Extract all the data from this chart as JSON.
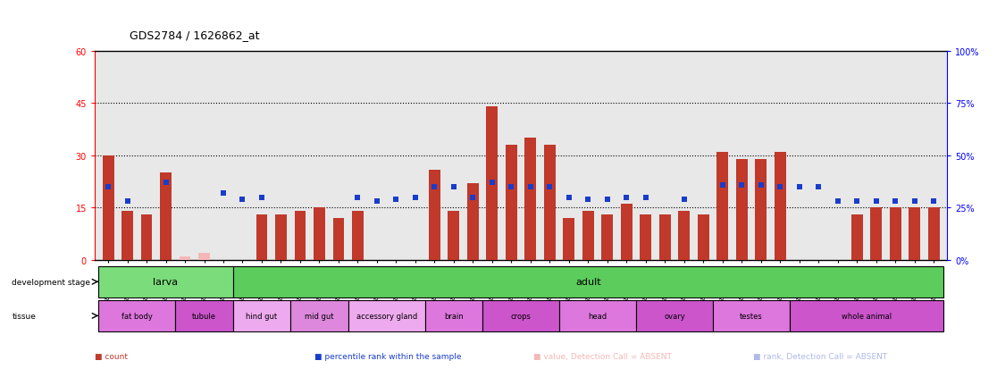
{
  "title": "GDS2784 / 1626862_at",
  "samples": [
    "GSM188092",
    "GSM188093",
    "GSM188094",
    "GSM188095",
    "GSM188100",
    "GSM188101",
    "GSM188102",
    "GSM188103",
    "GSM188072",
    "GSM188073",
    "GSM188074",
    "GSM188075",
    "GSM188076",
    "GSM188077",
    "GSM188078",
    "GSM188079",
    "GSM188080",
    "GSM188081",
    "GSM188082",
    "GSM188083",
    "GSM188084",
    "GSM188085",
    "GSM188086",
    "GSM188087",
    "GSM188088",
    "GSM188089",
    "GSM188090",
    "GSM188091",
    "GSM188096",
    "GSM188097",
    "GSM188098",
    "GSM188099",
    "GSM188104",
    "GSM188105",
    "GSM188106",
    "GSM188107",
    "GSM188108",
    "GSM188109",
    "GSM188110",
    "GSM188111",
    "GSM188112",
    "GSM188113",
    "GSM188114",
    "GSM188115"
  ],
  "count_values": [
    30,
    14,
    13,
    25,
    1,
    2,
    null,
    null,
    13,
    13,
    14,
    15,
    12,
    14,
    null,
    null,
    null,
    26,
    14,
    22,
    44,
    33,
    35,
    33,
    12,
    14,
    13,
    16,
    13,
    13,
    14,
    13,
    31,
    29,
    29,
    31,
    null,
    null,
    null,
    13,
    15,
    15,
    15,
    15
  ],
  "count_absent": [
    false,
    false,
    false,
    false,
    true,
    true,
    true,
    false,
    false,
    false,
    false,
    false,
    false,
    false,
    true,
    true,
    true,
    false,
    false,
    false,
    false,
    false,
    false,
    false,
    false,
    false,
    false,
    false,
    false,
    false,
    false,
    false,
    false,
    false,
    false,
    false,
    true,
    false,
    true,
    false,
    false,
    false,
    false,
    false
  ],
  "rank_values": [
    35,
    28,
    null,
    37,
    null,
    null,
    32,
    29,
    30,
    null,
    null,
    null,
    null,
    30,
    28,
    29,
    30,
    35,
    35,
    30,
    37,
    35,
    35,
    35,
    30,
    29,
    29,
    30,
    30,
    null,
    29,
    null,
    36,
    36,
    36,
    35,
    35,
    35,
    28,
    28,
    28,
    28,
    28,
    28
  ],
  "rank_absent": [
    false,
    false,
    false,
    false,
    false,
    false,
    false,
    false,
    false,
    true,
    true,
    false,
    false,
    false,
    false,
    false,
    false,
    false,
    false,
    false,
    false,
    false,
    false,
    false,
    false,
    false,
    false,
    false,
    false,
    true,
    false,
    false,
    false,
    false,
    false,
    false,
    false,
    false,
    false,
    false,
    false,
    false,
    false,
    false
  ],
  "ylim_left": [
    0,
    60
  ],
  "ylim_right": [
    0,
    100
  ],
  "yticks_left": [
    0,
    15,
    30,
    45,
    60
  ],
  "yticks_right": [
    0,
    25,
    50,
    75,
    100
  ],
  "ytick_labels_left": [
    "0",
    "15",
    "30",
    "45",
    "60"
  ],
  "ytick_labels_right": [
    "0%",
    "25%",
    "50%",
    "75%",
    "100%"
  ],
  "hlines": [
    15,
    30,
    45
  ],
  "bar_color_present": "#c0392b",
  "bar_color_absent": "#f5b8b8",
  "dot_color_present": "#1a3ccc",
  "dot_color_absent": "#b0b8e8",
  "development_stages": [
    {
      "label": "larva",
      "start": 0,
      "end": 7,
      "color": "#7bdc7b"
    },
    {
      "label": "adult",
      "start": 7,
      "end": 44,
      "color": "#5ccc5c"
    }
  ],
  "tissues": [
    {
      "label": "fat body",
      "start": 0,
      "end": 4,
      "color": "#dd77dd"
    },
    {
      "label": "tubule",
      "start": 4,
      "end": 7,
      "color": "#cc55cc"
    },
    {
      "label": "hind gut",
      "start": 7,
      "end": 10,
      "color": "#eeaaee"
    },
    {
      "label": "mid gut",
      "start": 10,
      "end": 13,
      "color": "#dd88dd"
    },
    {
      "label": "accessory gland",
      "start": 13,
      "end": 17,
      "color": "#eeaaee"
    },
    {
      "label": "brain",
      "start": 17,
      "end": 20,
      "color": "#dd77dd"
    },
    {
      "label": "crops",
      "start": 20,
      "end": 24,
      "color": "#cc55cc"
    },
    {
      "label": "head",
      "start": 24,
      "end": 28,
      "color": "#dd77dd"
    },
    {
      "label": "ovary",
      "start": 28,
      "end": 32,
      "color": "#cc55cc"
    },
    {
      "label": "testes",
      "start": 32,
      "end": 36,
      "color": "#dd77dd"
    },
    {
      "label": "whole animal",
      "start": 36,
      "end": 44,
      "color": "#cc55cc"
    }
  ],
  "legend_items": [
    {
      "label": "count",
      "color": "#c0392b"
    },
    {
      "label": "percentile rank within the sample",
      "color": "#1a3ccc"
    },
    {
      "label": "value, Detection Call = ABSENT",
      "color": "#f5b8b8"
    },
    {
      "label": "rank, Detection Call = ABSENT",
      "color": "#b0b8e8"
    }
  ],
  "dev_label": "development stage",
  "tis_label": "tissue",
  "bg_color": "#e8e8e8"
}
